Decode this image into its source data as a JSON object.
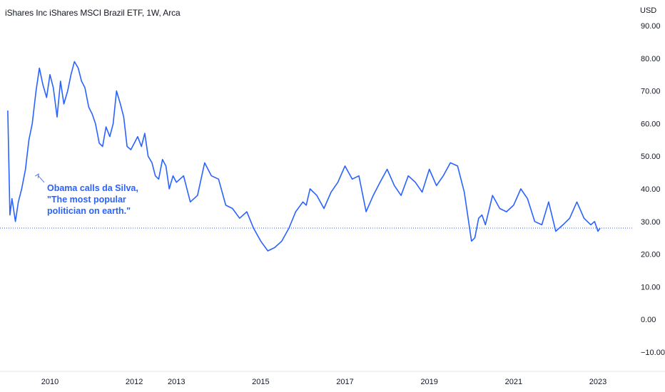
{
  "chart_data": {
    "type": "line",
    "title": "iShares Inc iShares MSCI Brazil ETF, 1W, Arca",
    "currency_label": "USD",
    "ylim": [
      -13,
      94
    ],
    "y_ticks": [
      "90.00",
      "80.00",
      "70.00",
      "60.00",
      "50.00",
      "40.00",
      "30.00",
      "20.00",
      "10.00",
      "0.00",
      "−10.00"
    ],
    "y_tick_values": [
      90,
      80,
      70,
      60,
      50,
      40,
      30,
      20,
      10,
      0,
      -10
    ],
    "xlim": [
      2009.0,
      2023.85
    ],
    "x_ticks": [
      "2010",
      "2012",
      "2013",
      "2015",
      "2017",
      "2019",
      "2021",
      "2023"
    ],
    "x_tick_values": [
      2010.0,
      2012.0,
      2013.0,
      2015.0,
      2017.0,
      2019.0,
      2021.0,
      2023.0
    ],
    "last_value": 28,
    "line_color": "#2962ff",
    "series": [
      {
        "x": [
          2009.0,
          2009.05,
          2009.1,
          2009.18,
          2009.25,
          2009.33,
          2009.42,
          2009.5,
          2009.58,
          2009.67,
          2009.75,
          2009.83,
          2009.92,
          2010.0,
          2010.08,
          2010.17,
          2010.25,
          2010.33,
          2010.42,
          2010.5,
          2010.58,
          2010.67,
          2010.75,
          2010.83,
          2010.92,
          2011.0,
          2011.08,
          2011.17,
          2011.25,
          2011.33,
          2011.42,
          2011.5,
          2011.58,
          2011.67,
          2011.75,
          2011.83,
          2011.92,
          2012.0,
          2012.08,
          2012.17,
          2012.25,
          2012.33,
          2012.42,
          2012.5,
          2012.58,
          2012.67,
          2012.75,
          2012.83,
          2012.92,
          2013.0,
          2013.17,
          2013.33,
          2013.5,
          2013.67,
          2013.83,
          2014.0,
          2014.17,
          2014.33,
          2014.5,
          2014.67,
          2014.83,
          2015.0,
          2015.17,
          2015.33,
          2015.5,
          2015.67,
          2015.83,
          2016.0,
          2016.08,
          2016.17,
          2016.33,
          2016.5,
          2016.67,
          2016.83,
          2017.0,
          2017.17,
          2017.33,
          2017.5,
          2017.67,
          2017.83,
          2018.0,
          2018.17,
          2018.33,
          2018.5,
          2018.67,
          2018.83,
          2019.0,
          2019.17,
          2019.33,
          2019.5,
          2019.67,
          2019.83,
          2020.0,
          2020.08,
          2020.17,
          2020.25,
          2020.33,
          2020.5,
          2020.67,
          2020.83,
          2021.0,
          2021.17,
          2021.33,
          2021.5,
          2021.67,
          2021.83,
          2022.0,
          2022.17,
          2022.33,
          2022.5,
          2022.67,
          2022.83,
          2022.92,
          2023.0,
          2023.05
        ],
        "values": [
          64,
          32,
          37,
          30,
          36,
          40,
          46,
          55,
          60,
          70,
          77,
          72,
          68,
          75,
          71,
          62,
          73,
          66,
          70,
          75,
          79,
          77,
          73,
          71,
          65,
          63,
          60,
          54,
          53,
          59,
          56,
          60,
          70,
          66,
          62,
          53,
          52,
          54,
          56,
          53,
          57,
          50,
          48,
          44,
          43,
          49,
          47,
          40,
          44,
          42,
          44,
          36,
          38,
          48,
          44,
          43,
          35,
          34,
          31,
          33,
          28,
          24,
          21,
          22,
          24,
          28,
          33,
          36,
          35,
          40,
          38,
          34,
          39,
          42,
          47,
          43,
          44,
          33,
          38,
          42,
          46,
          41,
          38,
          44,
          42,
          39,
          46,
          41,
          44,
          48,
          47,
          39,
          24,
          25,
          31,
          32,
          29,
          38,
          34,
          33,
          35,
          40,
          37,
          30,
          29,
          36,
          27,
          29,
          31,
          36,
          31,
          29,
          30,
          27,
          28
        ],
        "color": "#2962ff"
      }
    ],
    "annotation": {
      "lines": [
        "Obama calls da Silva,",
        "\"The most popular",
        "politician on earth.\""
      ],
      "arrow_target_x": 2009.75,
      "arrow_target_y": 45
    }
  }
}
